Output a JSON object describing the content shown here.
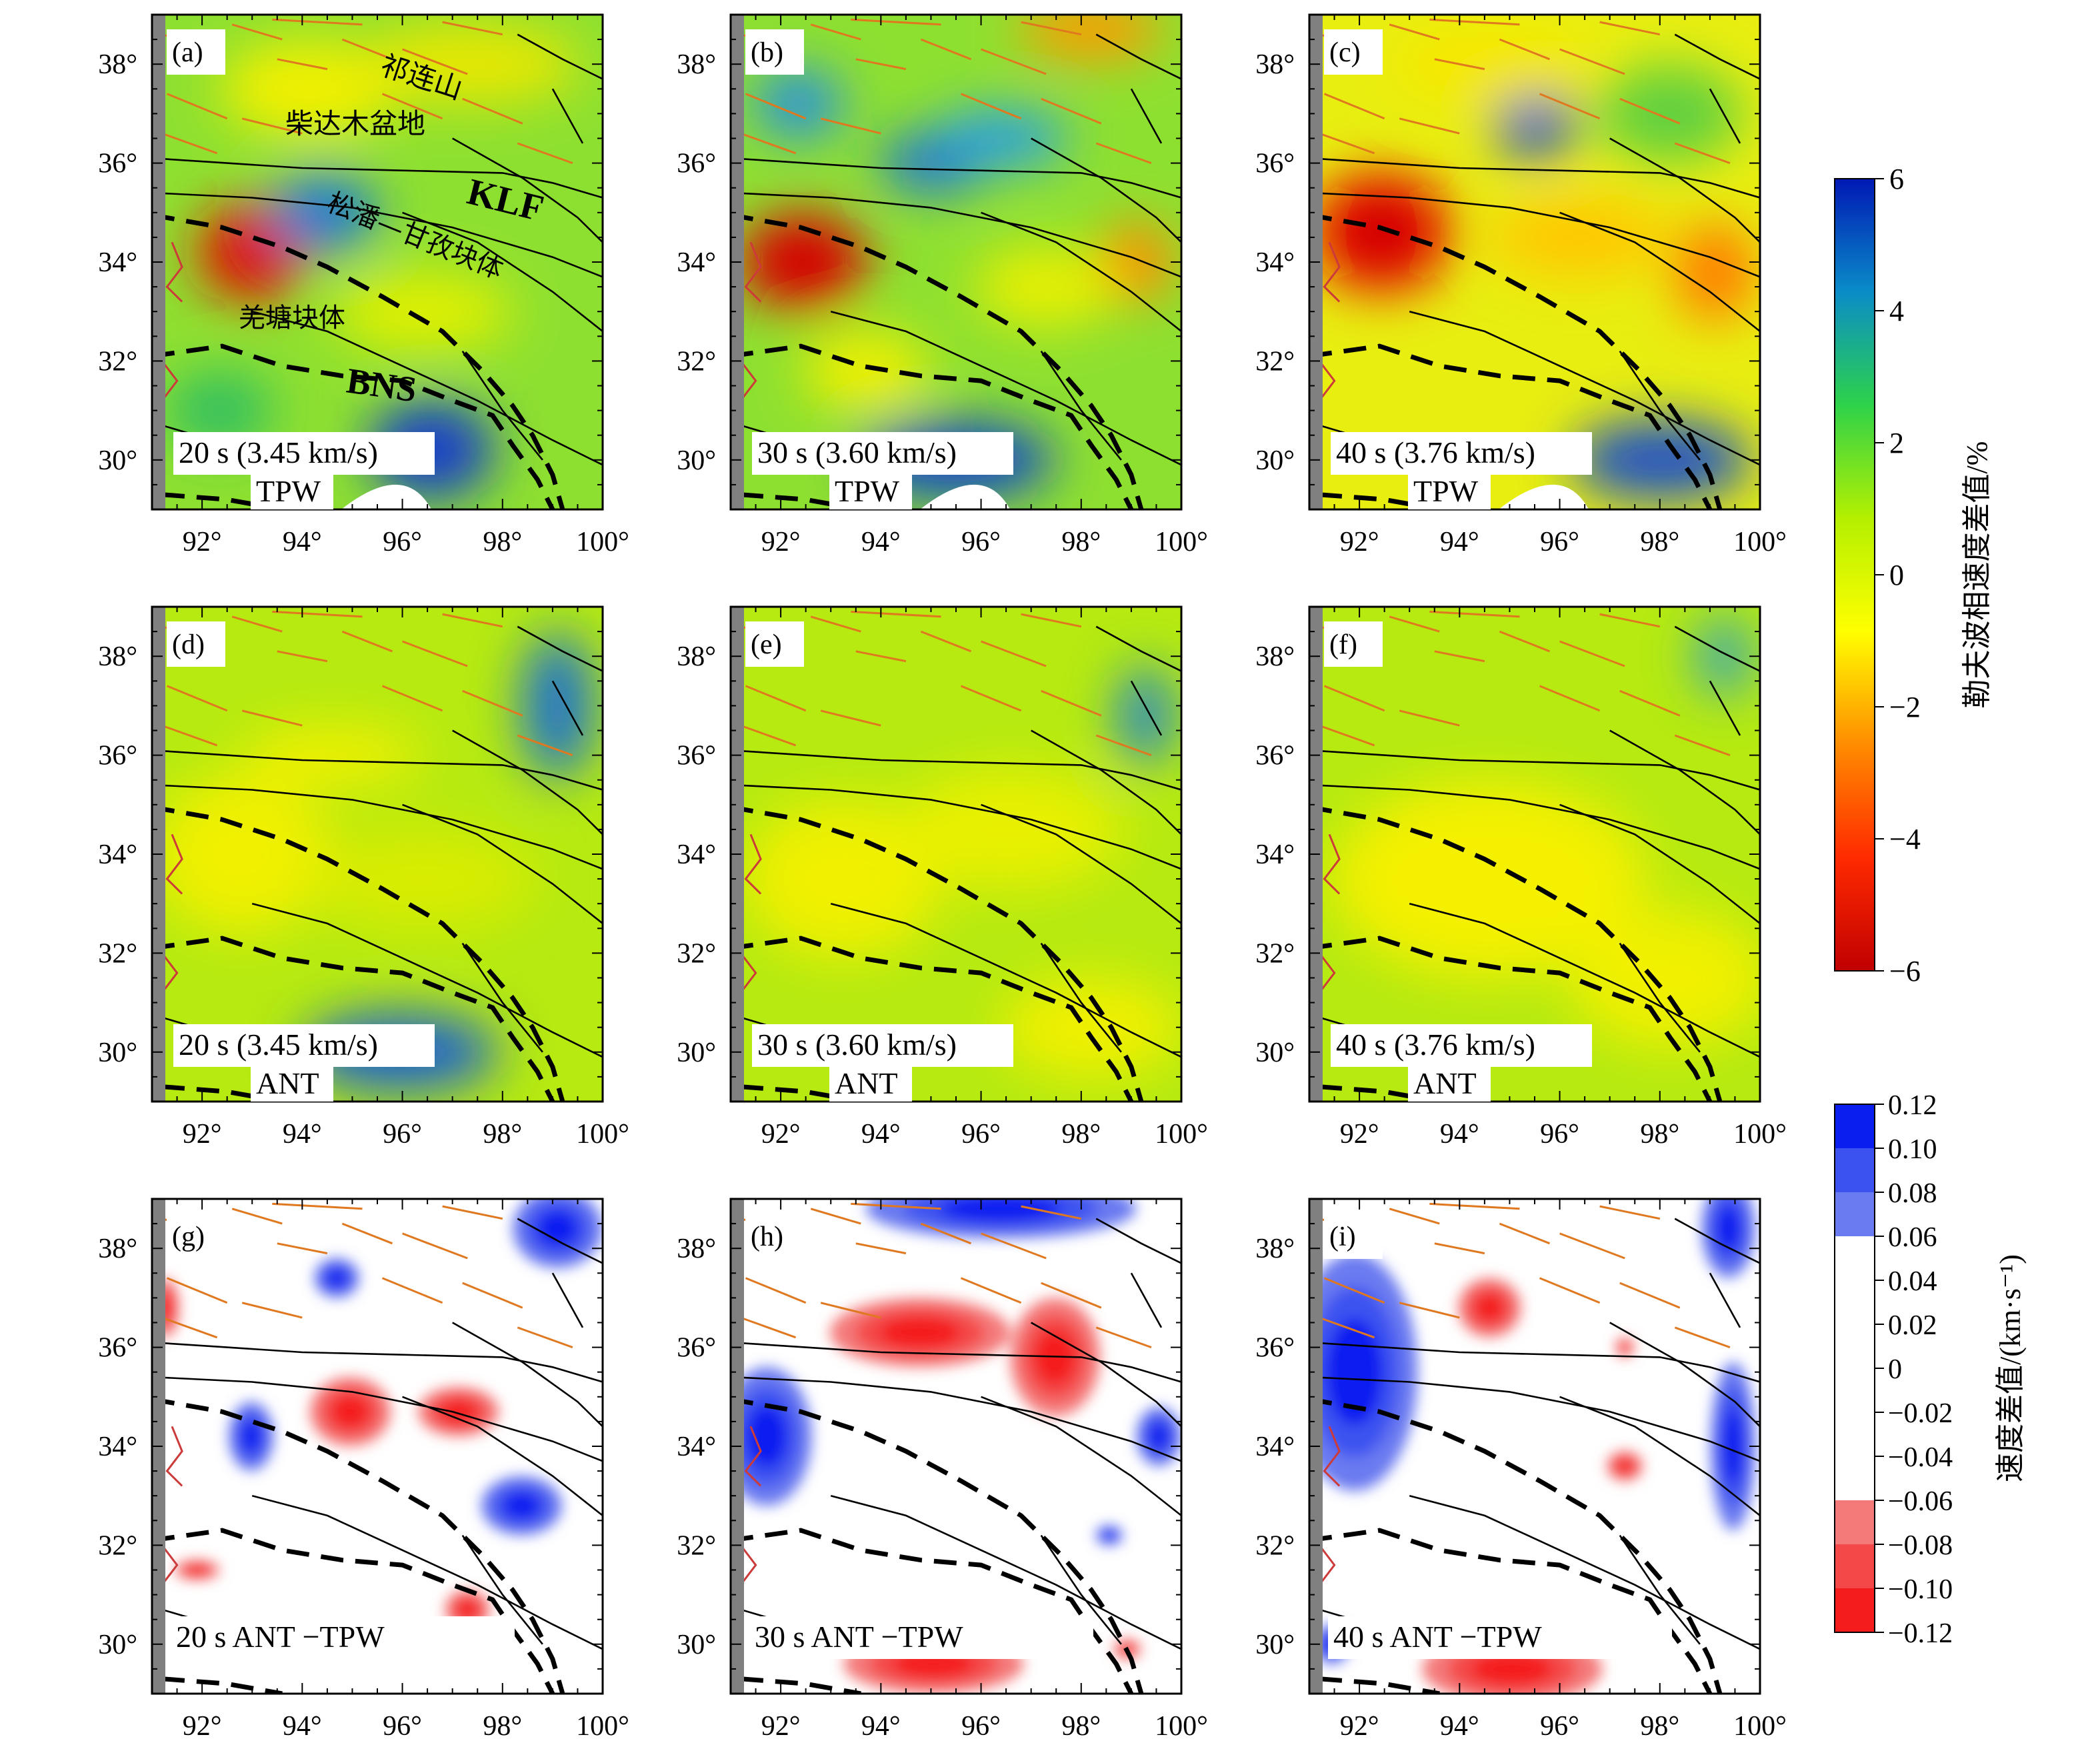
{
  "panels": [
    {
      "tag": "(a)",
      "period": "20 s (3.45 km/s)",
      "method": "TPW",
      "kind": "vel"
    },
    {
      "tag": "(b)",
      "period": "30 s (3.60 km/s)",
      "method": "TPW",
      "kind": "vel"
    },
    {
      "tag": "(c)",
      "period": "40 s (3.76 km/s)",
      "method": "TPW",
      "kind": "vel"
    },
    {
      "tag": "(d)",
      "period": "20 s (3.45 km/s)",
      "method": "ANT",
      "kind": "vel"
    },
    {
      "tag": "(e)",
      "period": "30 s (3.60 km/s)",
      "method": "ANT",
      "kind": "vel"
    },
    {
      "tag": "(f)",
      "period": "40 s (3.76 km/s)",
      "method": "ANT",
      "kind": "vel"
    },
    {
      "tag": "(g)",
      "period": "20 s ANT −TPW",
      "method": "",
      "kind": "diff"
    },
    {
      "tag": "(h)",
      "period": "30 s ANT −TPW",
      "method": "",
      "kind": "diff"
    },
    {
      "tag": "(i)",
      "period": "40 s ANT −TPW",
      "method": "",
      "kind": "diff"
    }
  ],
  "axes": {
    "lon_ticks": [
      "92°",
      "94°",
      "96°",
      "98°",
      "100°"
    ],
    "lat_ticks": [
      "30°",
      "32°",
      "34°",
      "36°",
      "38°"
    ],
    "lon_range": [
      91,
      100
    ],
    "lat_range": [
      29,
      39
    ]
  },
  "map_labels": {
    "qilian": "祁连山",
    "qaidam": "柴达木盆地",
    "klf": "KLF",
    "songpan": "松潘—甘孜块体",
    "qiangtang": "羌塘块体",
    "bns": "BNS"
  },
  "colorbar_velocity": {
    "label": "勒夫波相速度差值/%",
    "ticks": [
      "6",
      "4",
      "2",
      "0",
      "−2",
      "−4",
      "−6"
    ],
    "range": [
      -6,
      6
    ],
    "colors": [
      "#c00000",
      "#ff2a00",
      "#ff8c00",
      "#ffff00",
      "#b4f000",
      "#2ed24a",
      "#0a8cc8",
      "#0018b4"
    ]
  },
  "colorbar_difference": {
    "label": "速度差值/(km·s⁻¹)",
    "ticks": [
      "0.12",
      "0.10",
      "0.08",
      "0.06",
      "0.04",
      "0.02",
      "0",
      "−0.02",
      "−0.04",
      "−0.06",
      "−0.08",
      "−0.10",
      "−0.12"
    ],
    "bands": [
      "#0a1ef0",
      "#3c52f0",
      "#6a7af0",
      "#ffffff",
      "#ffffff",
      "#ffffff",
      "#ffffff",
      "#ffffff",
      "#ffffff",
      "#f47a7a",
      "#f44848",
      "#f41c1c"
    ]
  }
}
